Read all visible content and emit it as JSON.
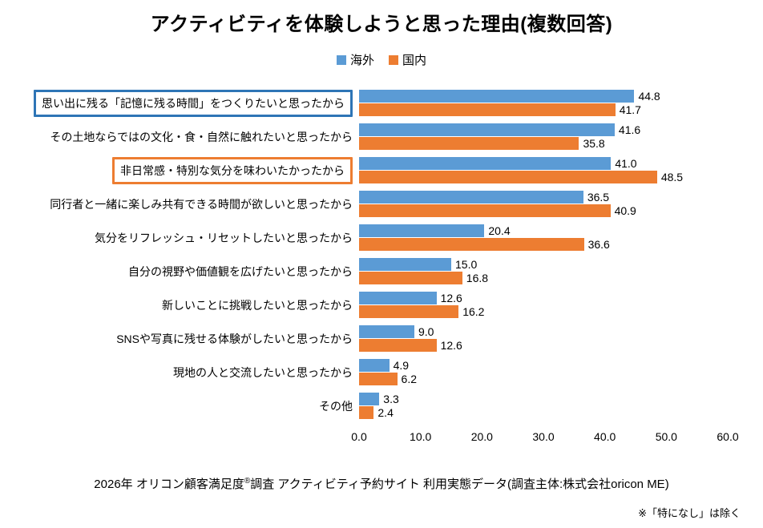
{
  "title": "アクティビティを体験しようと思った理由(複数回答)",
  "legend": [
    {
      "label": "海外",
      "color": "#5B9BD5"
    },
    {
      "label": "国内",
      "color": "#ED7D31"
    }
  ],
  "chart_data": {
    "type": "bar",
    "orientation": "horizontal",
    "title": "アクティビティを体験しようと思った理由(複数回答)",
    "categories": [
      "思い出に残る「記憶に残る時間」をつくりたいと思ったから",
      "その土地ならではの文化・食・自然に触れたいと思ったから",
      "非日常感・特別な気分を味わいたかったから",
      "同行者と一緒に楽しみ共有できる時間が欲しいと思ったから",
      "気分をリフレッシュ・リセットしたいと思ったから",
      "自分の視野や価値観を広げたいと思ったから",
      "新しいことに挑戦したいと思ったから",
      "SNSや写真に残せる体験がしたいと思ったから",
      "現地の人と交流したいと思ったから",
      "その他"
    ],
    "series": [
      {
        "name": "海外",
        "color": "#5B9BD5",
        "values": [
          44.8,
          41.6,
          41.0,
          36.5,
          20.4,
          15.0,
          12.6,
          9.0,
          4.9,
          3.3
        ]
      },
      {
        "name": "国内",
        "color": "#ED7D31",
        "values": [
          41.7,
          35.8,
          48.5,
          40.9,
          36.6,
          16.8,
          16.2,
          12.6,
          6.2,
          2.4
        ]
      }
    ],
    "xlim": [
      0,
      60
    ],
    "xticks": [
      "0.0",
      "10.0",
      "20.0",
      "30.0",
      "40.0",
      "50.0",
      "60.0"
    ],
    "grid": false,
    "legend_position": "top",
    "highlights": [
      {
        "index": 0,
        "color": "#2E75B6"
      },
      {
        "index": 2,
        "color": "#ED7D31"
      }
    ]
  },
  "footer": {
    "pre_reg": "2026年 オリコン顧客満足度",
    "reg": "®",
    "post_reg": "調査 アクティビティ予約サイト 利用実態データ(調査主体:株式会社oricon ME)"
  },
  "note": "※「特になし」は除く"
}
